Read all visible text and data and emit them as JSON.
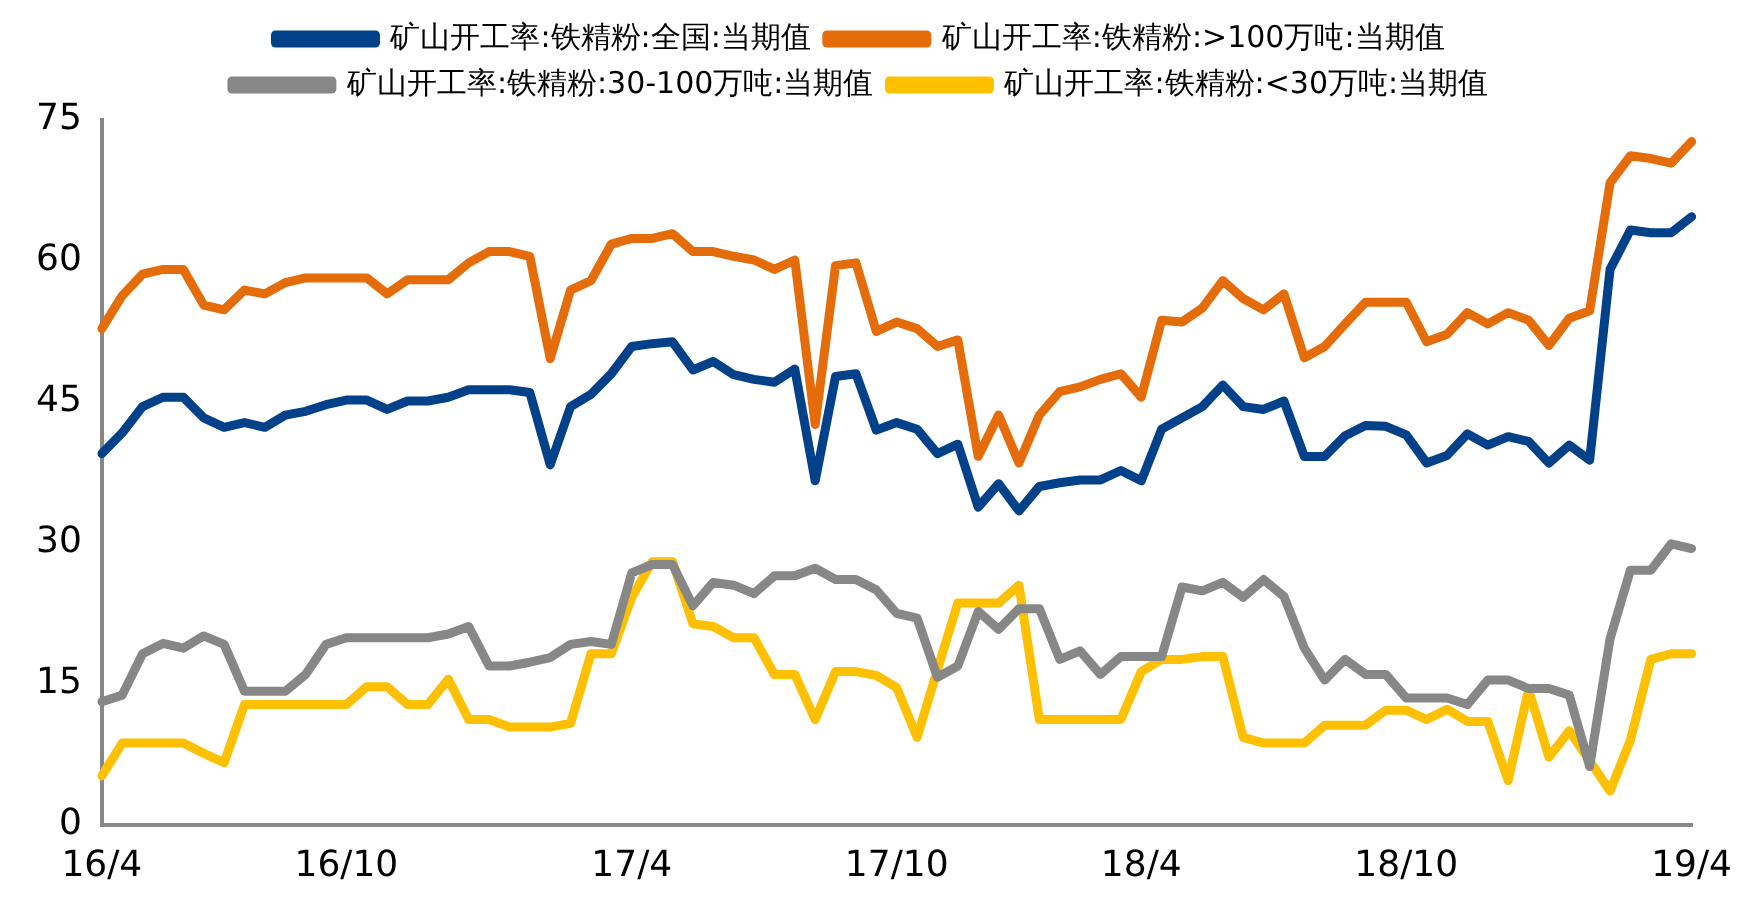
{
  "chart_data": {
    "type": "line",
    "categories": [
      "16/4",
      null,
      null,
      null,
      null,
      null,
      null,
      null,
      null,
      null,
      null,
      null,
      "16/10",
      null,
      null,
      null,
      null,
      null,
      null,
      null,
      null,
      null,
      null,
      null,
      null,
      null,
      "17/4",
      null,
      null,
      null,
      null,
      null,
      null,
      null,
      null,
      null,
      null,
      null,
      null,
      "17/10",
      null,
      null,
      null,
      null,
      null,
      null,
      null,
      null,
      null,
      null,
      null,
      "18/4",
      null,
      null,
      null,
      null,
      null,
      null,
      null,
      null,
      null,
      null,
      null,
      null,
      "18/10",
      null,
      null,
      null,
      null,
      null,
      null,
      null,
      null,
      null,
      null,
      null,
      null,
      null,
      "19/4"
    ],
    "series": [
      {
        "name": "矿山开工率:铁精粉:全国:当期值",
        "color": "#004189",
        "values": [
          39.5,
          41.7,
          44.5,
          45.5,
          45.5,
          43.3,
          42.3,
          42.8,
          42.3,
          43.6,
          44.0,
          44.7,
          45.2,
          45.2,
          44.2,
          45.1,
          45.1,
          45.5,
          46.3,
          46.3,
          46.3,
          46.0,
          38.3,
          44.5,
          45.8,
          48.0,
          50.9,
          51.2,
          51.4,
          48.4,
          49.3,
          47.9,
          47.4,
          47.1,
          48.5,
          36.6,
          47.7,
          48.0,
          42.0,
          42.8,
          42.1,
          39.5,
          40.5,
          33.8,
          36.3,
          33.4,
          36.0,
          36.4,
          36.7,
          36.7,
          37.7,
          36.6,
          42.1,
          43.3,
          44.5,
          46.8,
          44.5,
          44.2,
          45.1,
          39.2,
          39.2,
          41.4,
          42.5,
          42.4,
          41.5,
          38.5,
          39.3,
          41.6,
          40.4,
          41.3,
          40.8,
          38.5,
          40.4,
          38.8,
          59.1,
          63.3,
          63.0,
          63.0,
          64.7
        ]
      },
      {
        "name": "矿山开工率:铁精粉:>100万吨:当期值",
        "color": "#e46c0a",
        "values": [
          52.8,
          56.3,
          58.6,
          59.1,
          59.1,
          55.3,
          54.8,
          56.9,
          56.5,
          57.7,
          58.2,
          58.2,
          58.2,
          58.2,
          56.5,
          58.0,
          58.0,
          58.0,
          59.8,
          61.0,
          61.0,
          60.5,
          49.6,
          56.9,
          57.9,
          61.8,
          62.4,
          62.4,
          62.9,
          61.0,
          61.0,
          60.5,
          60.1,
          59.1,
          60.1,
          42.6,
          59.5,
          59.8,
          52.5,
          53.5,
          52.8,
          50.9,
          51.6,
          39.2,
          43.6,
          38.5,
          43.6,
          46.1,
          46.6,
          47.4,
          48.0,
          45.5,
          53.7,
          53.5,
          55.0,
          57.9,
          56.0,
          54.8,
          56.5,
          49.7,
          50.9,
          53.3,
          55.6,
          55.6,
          55.6,
          51.4,
          52.2,
          54.5,
          53.3,
          54.5,
          53.7,
          51.0,
          53.9,
          54.7,
          68.3,
          71.2,
          70.9,
          70.4,
          72.7
        ]
      },
      {
        "name": "矿山开工率:铁精粉:30-100万吨:当期值",
        "color": "#878787",
        "values": [
          13.1,
          13.8,
          18.2,
          19.3,
          18.8,
          20.1,
          19.2,
          14.2,
          14.2,
          14.2,
          16.0,
          19.2,
          19.9,
          19.9,
          19.9,
          19.9,
          19.9,
          20.3,
          21.1,
          16.9,
          16.9,
          17.3,
          17.8,
          19.2,
          19.5,
          19.2,
          26.8,
          27.7,
          27.7,
          23.3,
          25.8,
          25.5,
          24.6,
          26.5,
          26.5,
          27.3,
          26.1,
          26.1,
          25.0,
          22.5,
          22.0,
          15.7,
          16.9,
          22.7,
          20.8,
          23.0,
          23.0,
          17.6,
          18.5,
          16.0,
          17.9,
          17.9,
          17.9,
          25.3,
          24.9,
          25.8,
          24.2,
          26.1,
          24.3,
          18.8,
          15.4,
          17.6,
          16.0,
          16.0,
          13.5,
          13.5,
          13.5,
          12.8,
          15.4,
          15.4,
          14.5,
          14.5,
          13.8,
          6.2,
          19.8,
          27.1,
          27.1,
          29.9,
          29.4
        ]
      },
      {
        "name": "矿山开工率:铁精粉:<30万吨:当期值",
        "color": "#ffc000",
        "values": [
          5.2,
          8.7,
          8.7,
          8.7,
          8.7,
          7.6,
          6.6,
          12.8,
          12.8,
          12.8,
          12.8,
          12.8,
          12.8,
          14.7,
          14.7,
          12.8,
          12.8,
          15.5,
          11.2,
          11.2,
          10.4,
          10.4,
          10.4,
          10.8,
          18.2,
          18.2,
          24.2,
          28.0,
          28.0,
          21.4,
          21.1,
          19.9,
          19.9,
          16.0,
          16.0,
          11.2,
          16.3,
          16.3,
          15.9,
          14.6,
          9.3,
          16.5,
          23.6,
          23.6,
          23.6,
          25.5,
          11.2,
          11.2,
          11.2,
          11.2,
          11.2,
          16.3,
          17.6,
          17.6,
          17.9,
          17.9,
          9.3,
          8.7,
          8.7,
          8.7,
          10.6,
          10.6,
          10.6,
          12.2,
          12.2,
          11.2,
          12.3,
          11.0,
          11.0,
          4.7,
          14.4,
          7.2,
          10.0,
          6.8,
          3.6,
          9.0,
          17.6,
          18.2,
          18.2
        ]
      }
    ],
    "ylim": [
      0,
      75
    ],
    "yticks": [
      0,
      15,
      30,
      45,
      60,
      75
    ],
    "grid": false,
    "legend": "top",
    "marker": "none",
    "line_style": "solid"
  }
}
